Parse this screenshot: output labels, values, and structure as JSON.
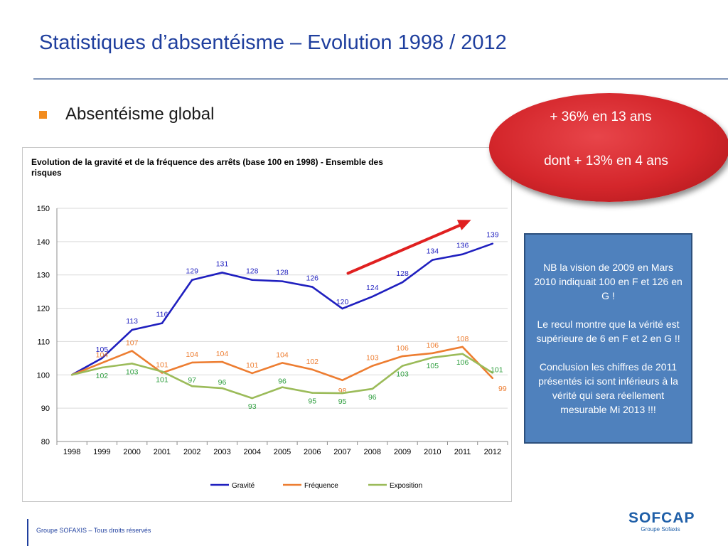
{
  "slide": {
    "title": "Statistiques d’absentéisme – Evolution 1998 / 2012",
    "bullet": "Absentéisme global",
    "footer": "Groupe SOFAXIS – Tous droits réservés"
  },
  "callout": {
    "line1": "+ 36% en 13 ans",
    "line2": "dont + 13% en 4 ans"
  },
  "note": {
    "p1": "NB la vision de 2009 en Mars 2010 indiquait 100 en F et 126 en G !",
    "p2": "Le recul montre que la vérité est supérieure  de 6 en F et 2 en G !!",
    "p3": "Conclusion les chiffres de 2011 présentés ici sont inférieurs à la vérité qui sera réellement mesurable Mi 2013 !!!"
  },
  "logo": {
    "name": "SOFCAP",
    "sub": "Groupe Sofaxis"
  },
  "chart_data": {
    "type": "line",
    "title": "Evolution de la gravité et de la fréquence des arrêts (base 100 en 1998) - Ensemble des risques",
    "categories": [
      "1998",
      "1999",
      "2000",
      "2001",
      "2002",
      "2003",
      "2004",
      "2005",
      "2006",
      "2007",
      "2008",
      "2009",
      "2010",
      "2011",
      "2012"
    ],
    "ylim": [
      80,
      150
    ],
    "yticks": [
      80,
      90,
      100,
      110,
      120,
      130,
      140,
      150
    ],
    "grid": true,
    "legend_position": "bottom",
    "series": [
      {
        "name": "Gravité",
        "color": "#1f1fbf",
        "values": [
          100,
          105,
          113.5,
          115.5,
          128.5,
          130.7,
          128.5,
          128.1,
          126.4,
          119.9,
          123.5,
          127.8,
          134.5,
          136.2,
          139.4
        ],
        "labels": [
          "",
          "105",
          "113",
          "116",
          "129",
          "131",
          "128",
          "128",
          "126",
          "120",
          "124",
          "128",
          "134",
          "136",
          "139"
        ]
      },
      {
        "name": "Fréquence",
        "color": "#ed7d31",
        "values": [
          100,
          103.6,
          107.2,
          100.6,
          103.7,
          103.9,
          100.5,
          103.6,
          101.6,
          98.4,
          102.7,
          105.6,
          106.5,
          108.4,
          99
        ],
        "labels": [
          "",
          "104",
          "107",
          "101",
          "104",
          "104",
          "101",
          "104",
          "102",
          "98",
          "103",
          "106",
          "106",
          "108",
          "99"
        ]
      },
      {
        "name": "Exposition",
        "color": "#9bbb59",
        "values": [
          100,
          102.2,
          103.4,
          101,
          96.6,
          96,
          93,
          96.3,
          94.6,
          94.5,
          95.8,
          102.7,
          105.2,
          106.3,
          100.6
        ],
        "labels": [
          "",
          "102",
          "103",
          "101",
          "97",
          "96",
          "93",
          "96",
          "95",
          "95",
          "96",
          "103",
          "105",
          "106",
          "101"
        ]
      }
    ],
    "annotation": {
      "type": "arrow",
      "color": "#e02020",
      "from": {
        "x": "2007",
        "y": 130.5
      },
      "to": {
        "x": "2011",
        "y": 146.5
      }
    }
  }
}
